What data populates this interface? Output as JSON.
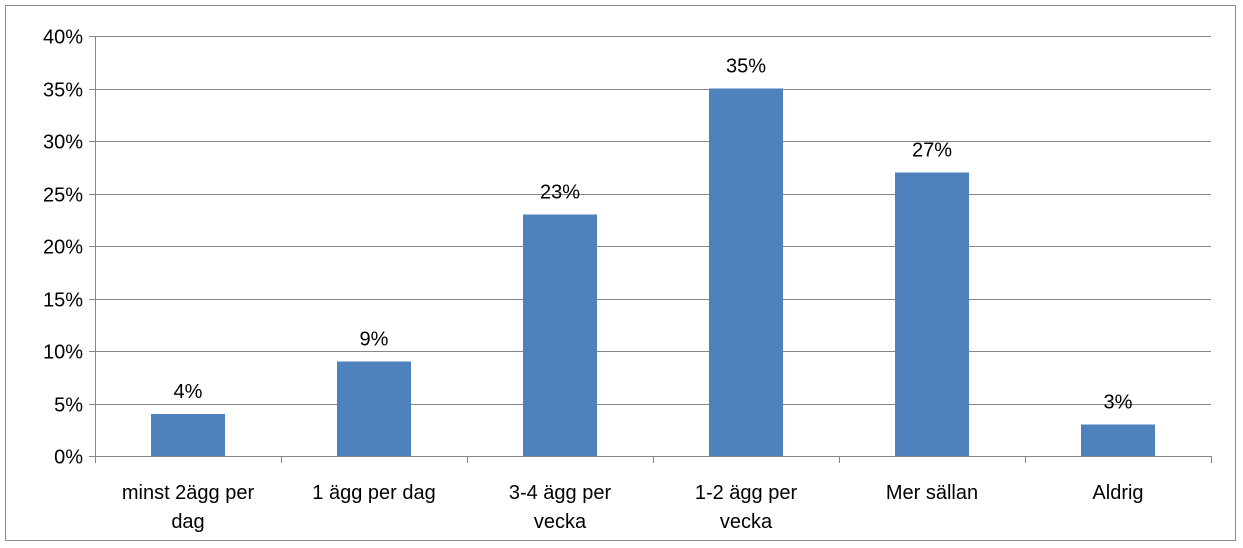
{
  "chart_data": {
    "type": "bar",
    "title": "",
    "xlabel": "",
    "ylabel": "",
    "categories": [
      [
        "minst 2ägg per",
        "dag"
      ],
      [
        "1 ägg per dag"
      ],
      [
        "3-4 ägg per",
        "vecka"
      ],
      [
        "1-2 ägg per",
        "vecka"
      ],
      [
        "Mer sällan"
      ],
      [
        "Aldrig"
      ]
    ],
    "values": [
      4,
      9,
      23,
      35,
      27,
      3
    ],
    "data_labels": [
      "4%",
      "9%",
      "23%",
      "35%",
      "27%",
      "3%"
    ],
    "ylim": [
      0,
      40
    ],
    "yticks": [
      0,
      5,
      10,
      15,
      20,
      25,
      30,
      35,
      40
    ],
    "ytick_labels": [
      "0%",
      "5%",
      "10%",
      "15%",
      "20%",
      "25%",
      "30%",
      "35%",
      "40%"
    ],
    "grid": true,
    "legend": "none",
    "colors": {
      "bar": "#4f81bd",
      "grid": "#868686",
      "axis": "#868686"
    }
  }
}
